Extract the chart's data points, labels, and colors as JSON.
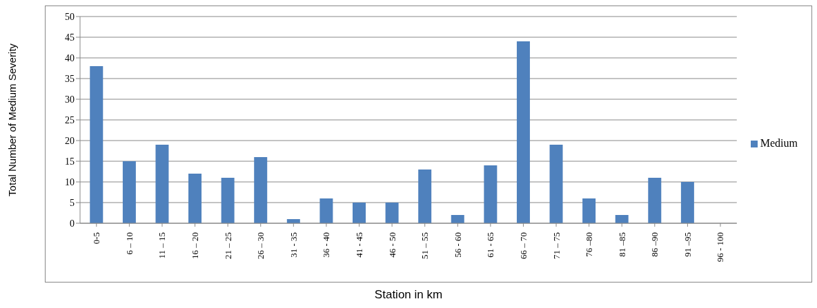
{
  "chart_data": {
    "type": "bar",
    "xlabel": "Station in km",
    "ylabel": "Total Number of Medium Severity",
    "categories": [
      "0-5",
      "6 – 10",
      "11 – 15",
      "16 – 20",
      "21 – 25",
      "26 – 30",
      "31 - 35",
      "36 - 40",
      "41 - 45",
      "46 - 50",
      "51 – 55",
      "56 - 60",
      "61 - 65",
      "66 – 70",
      "71 – 75",
      "76 –80",
      "81 –85",
      "86 –90",
      "91 –95",
      "96 - 100"
    ],
    "series": [
      {
        "name": "Medium",
        "color": "#4f81bd",
        "values": [
          38,
          15,
          19,
          12,
          11,
          16,
          1,
          6,
          5,
          5,
          13,
          2,
          14,
          44,
          19,
          6,
          2,
          11,
          10,
          0
        ]
      }
    ],
    "ylim": [
      0,
      50
    ],
    "yticks": [
      0,
      5,
      10,
      15,
      20,
      25,
      30,
      35,
      40,
      45,
      50
    ],
    "grid": "y",
    "legend": "right"
  }
}
